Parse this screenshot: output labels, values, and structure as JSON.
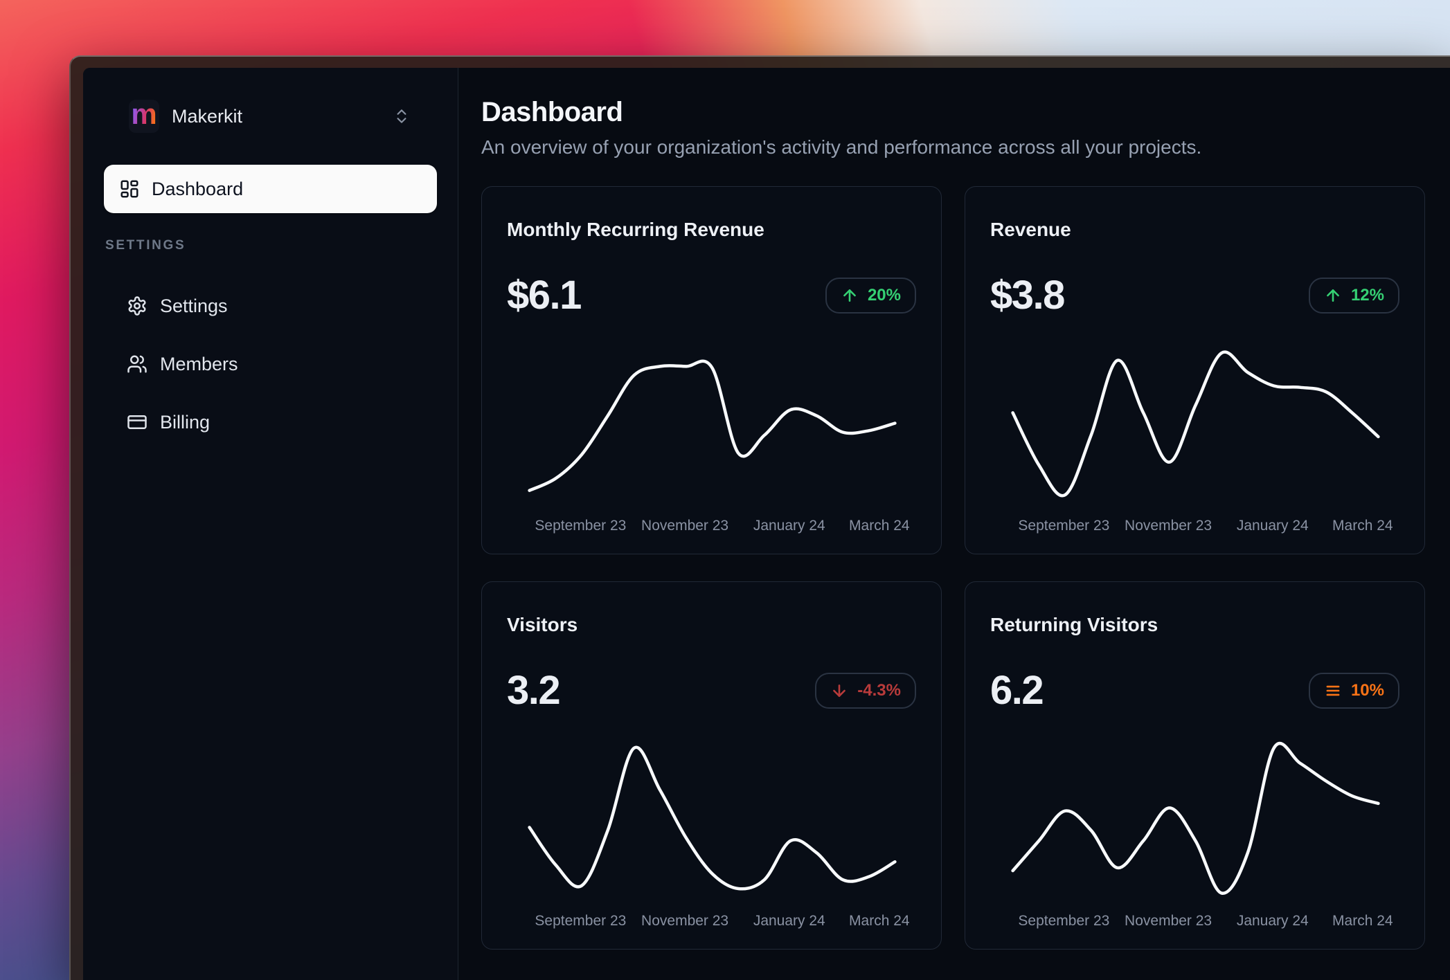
{
  "sidebar": {
    "workspace": {
      "logo_letter": "m",
      "name": "Makerkit",
      "logo_gradient": [
        "#8b5cf6",
        "#d6356e",
        "#f97316"
      ]
    },
    "nav": [
      {
        "label": "Dashboard",
        "icon": "layout-dashboard",
        "active": true
      }
    ],
    "section_label": "SETTINGS",
    "settings_nav": [
      {
        "label": "Settings",
        "icon": "gear"
      },
      {
        "label": "Members",
        "icon": "users"
      },
      {
        "label": "Billing",
        "icon": "credit-card"
      }
    ]
  },
  "header": {
    "title": "Dashboard",
    "subtitle": "An overview of your organization's activity and performance across all your projects."
  },
  "cards": [
    {
      "title": "Monthly Recurring Revenue",
      "value": "$6.1",
      "badge": {
        "text": "20%",
        "icon": "arrow-up",
        "color": "#35d073"
      }
    },
    {
      "title": "Revenue",
      "value": "$3.8",
      "badge": {
        "text": "12%",
        "icon": "arrow-up",
        "color": "#35d073"
      }
    },
    {
      "title": "Visitors",
      "value": "3.2",
      "badge": {
        "text": "-4.3%",
        "icon": "arrow-down",
        "color": "#b93b3b"
      }
    },
    {
      "title": "Returning Visitors",
      "value": "6.2",
      "badge": {
        "text": "10%",
        "icon": "bars",
        "color": "#f97316"
      }
    }
  ],
  "chart_data": [
    {
      "type": "line",
      "title": "Monthly Recurring Revenue",
      "categories": [
        "September 23",
        "November 23",
        "January 24",
        "March 24"
      ],
      "values": [
        8,
        16,
        32,
        58,
        85,
        91,
        91,
        90,
        33,
        45,
        62,
        58,
        47,
        48,
        53
      ],
      "ylim": [
        0,
        100
      ],
      "grid": "off",
      "legend": false
    },
    {
      "type": "line",
      "title": "Revenue",
      "categories": [
        "September 23",
        "November 23",
        "January 24",
        "March 24"
      ],
      "values": [
        60,
        25,
        5,
        45,
        95,
        60,
        27,
        65,
        100,
        87,
        78,
        77,
        74,
        60,
        44
      ],
      "ylim": [
        0,
        100
      ],
      "grid": "off",
      "legend": false
    },
    {
      "type": "line",
      "title": "Visitors",
      "categories": [
        "September 23",
        "November 23",
        "January 24",
        "March 24"
      ],
      "values": [
        47,
        22,
        8,
        45,
        100,
        72,
        40,
        16,
        6,
        12,
        38,
        30,
        12,
        14,
        24
      ],
      "ylim": [
        0,
        100
      ],
      "grid": "off",
      "legend": false
    },
    {
      "type": "line",
      "title": "Returning Visitors",
      "categories": [
        "September 23",
        "November 23",
        "January 24",
        "March 24"
      ],
      "values": [
        18,
        38,
        58,
        45,
        20,
        38,
        60,
        38,
        3,
        30,
        100,
        90,
        78,
        68,
        63
      ],
      "ylim": [
        0,
        100
      ],
      "grid": "off",
      "legend": false
    }
  ],
  "theme": {
    "line_color": "#f8fafc",
    "axis_label_color": "#8a92a3",
    "badge_green": "#35d073",
    "badge_red": "#b93b3b",
    "badge_orange": "#f97316"
  }
}
